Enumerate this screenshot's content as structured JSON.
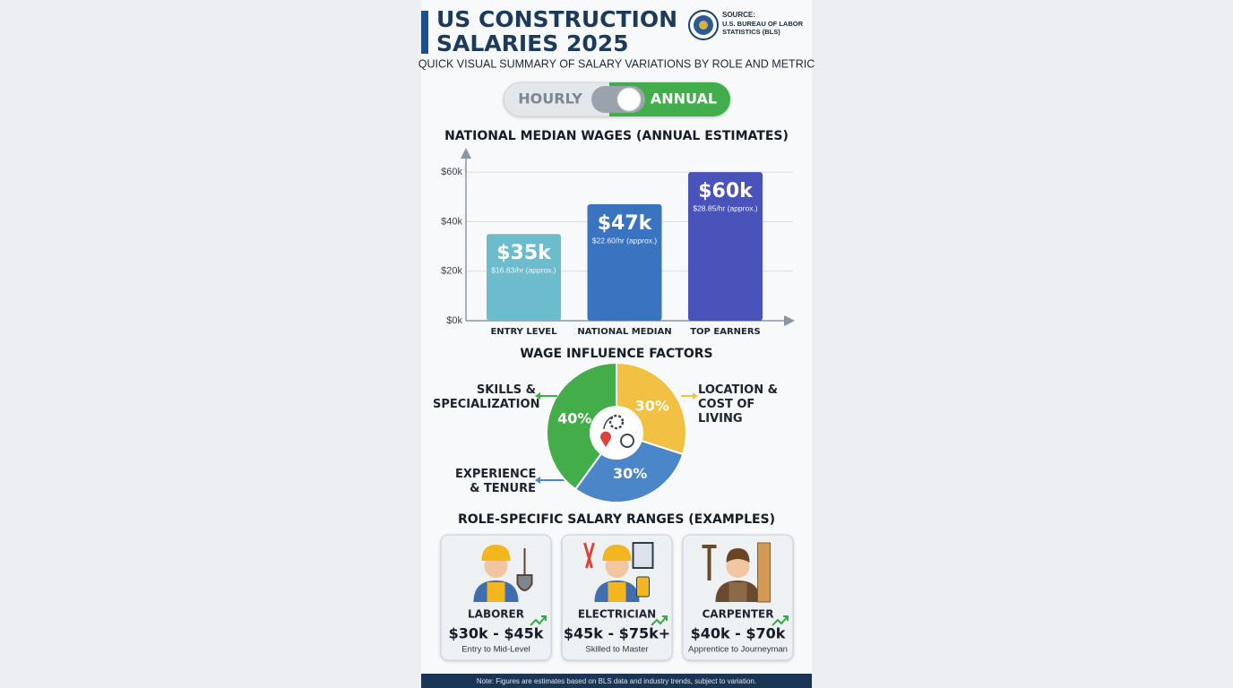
{
  "header": {
    "title_lines": [
      "US CONSTRUCTION",
      "SALARIES 2025"
    ],
    "source_label": "SOURCE:",
    "source_name": "U.S. BUREAU OF LABOR STATISTICS (BLS)",
    "subtitle": "QUICK VISUAL SUMMARY OF SALARY VARIATIONS BY ROLE AND METRIC"
  },
  "toggle": {
    "options": [
      "HOURLY",
      "ANNUAL"
    ],
    "selected": "ANNUAL"
  },
  "chart_data": [
    {
      "type": "bar",
      "title": "NATIONAL MEDIAN WAGES (ANNUAL ESTIMATES)",
      "categories": [
        "ENTRY LEVEL",
        "NATIONAL MEDIAN",
        "TOP EARNERS"
      ],
      "values": [
        35000,
        47000,
        60000
      ],
      "value_labels": [
        "$35k",
        "$47k",
        "$60k"
      ],
      "hourly_labels": [
        "$16.83/hr (approx.)",
        "$22.60/hr (approx.)",
        "$28.85/hr (approx.)"
      ],
      "colors": [
        "#6dbccd",
        "#3a74c0",
        "#4a53b9"
      ],
      "ylim": [
        0,
        68000
      ],
      "yticks": [
        {
          "value": 0,
          "label": "$0k"
        },
        {
          "value": 20000,
          "label": "$20k"
        },
        {
          "value": 40000,
          "label": "$40k"
        },
        {
          "value": 60000,
          "label": "$60k"
        }
      ],
      "grid": true
    },
    {
      "type": "pie",
      "title": "WAGE INFLUENCE FACTORS",
      "categories": [
        "LOCATION & COST OF LIVING",
        "EXPERIENCE & TENURE",
        "SKILLS & SPECIALIZATION"
      ],
      "values": [
        30,
        30,
        40
      ],
      "value_labels": [
        "30%",
        "30%",
        "40%"
      ],
      "colors": [
        "#f2c042",
        "#4a86c8",
        "#43ad4a"
      ]
    }
  ],
  "roles": {
    "title": "ROLE-SPECIFIC SALARY RANGES (EXAMPLES)",
    "items": [
      {
        "name": "LABORER",
        "range": "$30k - $45k",
        "level": "Entry to Mid-Level"
      },
      {
        "name": "ELECTRICIAN",
        "range": "$45k - $75k+",
        "level": "Skilled to Master"
      },
      {
        "name": "CARPENTER",
        "range": "$40k - $70k",
        "level": "Apprentice to Journeyman"
      }
    ]
  },
  "footer": {
    "note": "Note: Figures are estimates based on BLS data and industry trends, subject to variation."
  }
}
